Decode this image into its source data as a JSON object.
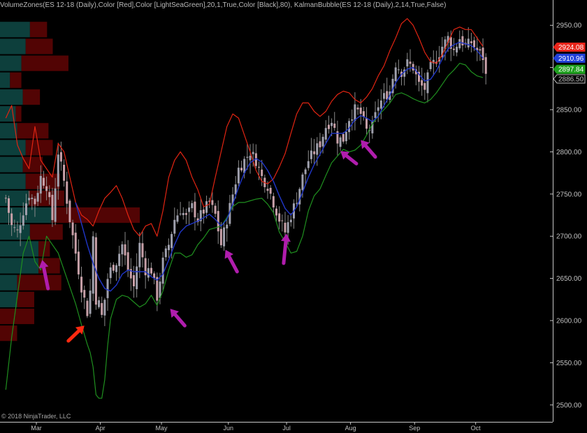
{
  "header": {
    "indicator_text": "VolumeZones(ES 12-18 (Daily),Color [Red],Color [LightSeaGreen],20,1,True,Color [Black],80), KalmanBubble(ES 12-18 (Daily),2,14,True,False)"
  },
  "footer": {
    "copyright": "© 2018 NinjaTrader, LLC"
  },
  "colors": {
    "background": "#000000",
    "bull_volume": "#0d3f3c",
    "bear_volume": "#520404",
    "upper_band": "#e02412",
    "lower_band": "#1f8f1f",
    "kalman_line": "#2036c8",
    "arrow_magenta": "#b01dad",
    "arrow_red": "#ff2a10",
    "candle_up": "#9fa0ad",
    "candle_down": "#c7a0a8",
    "axis_text": "#c0c0c0"
  },
  "chart_data": {
    "type": "candlestick",
    "instrument": "ES 12-18",
    "timeframe": "Daily",
    "yaxis": {
      "ticks": [
        2500,
        2550,
        2600,
        2650,
        2700,
        2750,
        2800,
        2850,
        2900,
        2950
      ],
      "tick_labels": [
        "2500.00",
        "2550.00",
        "2600.00",
        "2650.00",
        "2700.00",
        "2750.00",
        "2800.00",
        "2850.00",
        "2900.00",
        "2950.00"
      ],
      "ylim": [
        2480,
        2980
      ]
    },
    "xaxis": {
      "tick_labels": [
        "Mar",
        "Apr",
        "May",
        "Jun",
        "Jul",
        "Aug",
        "Sep",
        "Oct"
      ],
      "tick_positions": [
        0.5,
        22.5,
        43.5,
        66.5,
        86.5,
        108.5,
        130.5,
        151.5
      ],
      "xlim": [
        -12,
        178
      ]
    },
    "price_markers": [
      {
        "label": "2924.08",
        "value": 2924.08,
        "color": "#e8251a"
      },
      {
        "label": "2910.96",
        "value": 2910.96,
        "color": "#2040d8"
      },
      {
        "label": "2897.84",
        "value": 2897.84,
        "color": "#1ea01e"
      },
      {
        "label": "2886.50",
        "value": 2886.5,
        "color": "#000000"
      }
    ],
    "volume_zones": [
      {
        "price_lo": 2935,
        "price_hi": 2955,
        "bull": 21,
        "bear": 12
      },
      {
        "price_lo": 2915,
        "price_hi": 2935,
        "bull": 18,
        "bear": 19
      },
      {
        "price_lo": 2895,
        "price_hi": 2915,
        "bull": 15,
        "bear": 33
      },
      {
        "price_lo": 2875,
        "price_hi": 2895,
        "bull": 7,
        "bear": 8
      },
      {
        "price_lo": 2855,
        "price_hi": 2875,
        "bull": 16,
        "bear": 12
      },
      {
        "price_lo": 2835,
        "price_hi": 2855,
        "bull": 11,
        "bear": 4
      },
      {
        "price_lo": 2815,
        "price_hi": 2835,
        "bull": 12,
        "bear": 22
      },
      {
        "price_lo": 2795,
        "price_hi": 2815,
        "bull": 18,
        "bear": 19
      },
      {
        "price_lo": 2775,
        "price_hi": 2795,
        "bull": 16,
        "bear": 14
      },
      {
        "price_lo": 2755,
        "price_hi": 2775,
        "bull": 18,
        "bear": 24
      },
      {
        "price_lo": 2735,
        "price_hi": 2755,
        "bull": 20,
        "bear": 25
      },
      {
        "price_lo": 2715,
        "price_hi": 2735,
        "bull": 36,
        "bear": 62
      },
      {
        "price_lo": 2695,
        "price_hi": 2715,
        "bull": 21,
        "bear": 23
      },
      {
        "price_lo": 2675,
        "price_hi": 2695,
        "bull": 27,
        "bear": 8
      },
      {
        "price_lo": 2655,
        "price_hi": 2675,
        "bull": 27,
        "bear": 15
      },
      {
        "price_lo": 2635,
        "price_hi": 2655,
        "bull": 12,
        "bear": 31
      },
      {
        "price_lo": 2615,
        "price_hi": 2635,
        "bull": 12,
        "bear": 12
      },
      {
        "price_lo": 2595,
        "price_hi": 2615,
        "bull": 0,
        "bear": 24
      },
      {
        "price_lo": 2575,
        "price_hi": 2595,
        "bull": 0,
        "bear": 12
      }
    ],
    "close_path": [
      [
        -10,
        2745
      ],
      [
        -8,
        2712
      ],
      [
        -6,
        2705
      ],
      [
        -4,
        2730
      ],
      [
        -2,
        2750
      ],
      [
        0,
        2740
      ],
      [
        2,
        2770
      ],
      [
        4,
        2760
      ],
      [
        6,
        2720
      ],
      [
        8,
        2800
      ],
      [
        10,
        2765
      ],
      [
        12,
        2720
      ],
      [
        14,
        2680
      ],
      [
        16,
        2640
      ],
      [
        18,
        2610
      ],
      [
        19,
        2635
      ],
      [
        20,
        2700
      ],
      [
        21,
        2625
      ],
      [
        22,
        2620
      ],
      [
        23,
        2605
      ],
      [
        24,
        2625
      ],
      [
        25,
        2650
      ],
      [
        26,
        2660
      ],
      [
        28,
        2670
      ],
      [
        30,
        2690
      ],
      [
        32,
        2660
      ],
      [
        34,
        2640
      ],
      [
        36,
        2690
      ],
      [
        38,
        2660
      ],
      [
        40,
        2660
      ],
      [
        42,
        2628
      ],
      [
        44,
        2670
      ],
      [
        46,
        2690
      ],
      [
        48,
        2720
      ],
      [
        50,
        2732
      ],
      [
        52,
        2722
      ],
      [
        54,
        2735
      ],
      [
        56,
        2720
      ],
      [
        58,
        2730
      ],
      [
        60,
        2740
      ],
      [
        62,
        2725
      ],
      [
        64,
        2690
      ],
      [
        66,
        2720
      ],
      [
        68,
        2750
      ],
      [
        70,
        2780
      ],
      [
        72,
        2790
      ],
      [
        74,
        2800
      ],
      [
        76,
        2790
      ],
      [
        78,
        2770
      ],
      [
        80,
        2760
      ],
      [
        82,
        2740
      ],
      [
        84,
        2720
      ],
      [
        86,
        2705
      ],
      [
        88,
        2725
      ],
      [
        90,
        2745
      ],
      [
        92,
        2770
      ],
      [
        94,
        2790
      ],
      [
        96,
        2800
      ],
      [
        98,
        2810
      ],
      [
        100,
        2830
      ],
      [
        102,
        2838
      ],
      [
        104,
        2815
      ],
      [
        106,
        2815
      ],
      [
        108,
        2840
      ],
      [
        110,
        2850
      ],
      [
        112,
        2845
      ],
      [
        114,
        2825
      ],
      [
        116,
        2830
      ],
      [
        118,
        2855
      ],
      [
        120,
        2865
      ],
      [
        122,
        2872
      ],
      [
        124,
        2905
      ],
      [
        126,
        2895
      ],
      [
        128,
        2905
      ],
      [
        130,
        2900
      ],
      [
        132,
        2880
      ],
      [
        134,
        2875
      ],
      [
        136,
        2900
      ],
      [
        138,
        2910
      ],
      [
        140,
        2925
      ],
      [
        142,
        2935
      ],
      [
        144,
        2920
      ],
      [
        146,
        2935
      ],
      [
        148,
        2925
      ],
      [
        150,
        2930
      ],
      [
        152,
        2920
      ],
      [
        154,
        2912
      ],
      [
        155,
        2890
      ]
    ],
    "upper_band": [
      [
        -10,
        2840
      ],
      [
        -8,
        2855
      ],
      [
        -6,
        2808
      ],
      [
        -4,
        2792
      ],
      [
        -2,
        2780
      ],
      [
        0,
        2830
      ],
      [
        2,
        2790
      ],
      [
        4,
        2780
      ],
      [
        6,
        2770
      ],
      [
        8,
        2810
      ],
      [
        10,
        2800
      ],
      [
        12,
        2770
      ],
      [
        14,
        2740
      ],
      [
        16,
        2725
      ],
      [
        18,
        2720
      ],
      [
        20,
        2712
      ],
      [
        22,
        2730
      ],
      [
        24,
        2745
      ],
      [
        26,
        2752
      ],
      [
        28,
        2760
      ],
      [
        30,
        2745
      ],
      [
        32,
        2725
      ],
      [
        34,
        2708
      ],
      [
        36,
        2700
      ],
      [
        38,
        2712
      ],
      [
        40,
        2715
      ],
      [
        42,
        2700
      ],
      [
        44,
        2730
      ],
      [
        46,
        2770
      ],
      [
        48,
        2790
      ],
      [
        50,
        2800
      ],
      [
        52,
        2790
      ],
      [
        54,
        2770
      ],
      [
        56,
        2755
      ],
      [
        58,
        2735
      ],
      [
        60,
        2738
      ],
      [
        62,
        2770
      ],
      [
        64,
        2800
      ],
      [
        66,
        2830
      ],
      [
        68,
        2845
      ],
      [
        70,
        2840
      ],
      [
        72,
        2820
      ],
      [
        74,
        2800
      ],
      [
        76,
        2778
      ],
      [
        78,
        2765
      ],
      [
        80,
        2762
      ],
      [
        82,
        2768
      ],
      [
        84,
        2782
      ],
      [
        86,
        2798
      ],
      [
        88,
        2822
      ],
      [
        90,
        2845
      ],
      [
        92,
        2858
      ],
      [
        94,
        2858
      ],
      [
        96,
        2848
      ],
      [
        98,
        2842
      ],
      [
        100,
        2848
      ],
      [
        102,
        2860
      ],
      [
        104,
        2868
      ],
      [
        106,
        2872
      ],
      [
        108,
        2870
      ],
      [
        110,
        2862
      ],
      [
        112,
        2858
      ],
      [
        114,
        2865
      ],
      [
        116,
        2875
      ],
      [
        118,
        2890
      ],
      [
        120,
        2902
      ],
      [
        122,
        2920
      ],
      [
        124,
        2935
      ],
      [
        126,
        2952
      ],
      [
        128,
        2958
      ],
      [
        130,
        2950
      ],
      [
        132,
        2935
      ],
      [
        134,
        2918
      ],
      [
        136,
        2907
      ],
      [
        138,
        2905
      ],
      [
        140,
        2915
      ],
      [
        142,
        2930
      ],
      [
        144,
        2945
      ],
      [
        146,
        2948
      ],
      [
        148,
        2945
      ],
      [
        150,
        2945
      ],
      [
        152,
        2935
      ],
      [
        154,
        2925
      ]
    ],
    "lower_band": [
      [
        -10,
        2518
      ],
      [
        -8,
        2580
      ],
      [
        -6,
        2630
      ],
      [
        -4,
        2680
      ],
      [
        -2,
        2700
      ],
      [
        0,
        2670
      ],
      [
        2,
        2660
      ],
      [
        4,
        2700
      ],
      [
        6,
        2690
      ],
      [
        8,
        2680
      ],
      [
        10,
        2660
      ],
      [
        12,
        2640
      ],
      [
        14,
        2620
      ],
      [
        16,
        2595
      ],
      [
        18,
        2572
      ],
      [
        19,
        2562
      ],
      [
        20,
        2545
      ],
      [
        21,
        2512
      ],
      [
        22,
        2508
      ],
      [
        23,
        2508
      ],
      [
        24,
        2530
      ],
      [
        25,
        2570
      ],
      [
        26,
        2602
      ],
      [
        28,
        2625
      ],
      [
        30,
        2630
      ],
      [
        32,
        2628
      ],
      [
        34,
        2622
      ],
      [
        36,
        2616
      ],
      [
        38,
        2620
      ],
      [
        40,
        2630
      ],
      [
        42,
        2618
      ],
      [
        44,
        2635
      ],
      [
        46,
        2660
      ],
      [
        48,
        2680
      ],
      [
        50,
        2680
      ],
      [
        52,
        2675
      ],
      [
        54,
        2678
      ],
      [
        56,
        2690
      ],
      [
        58,
        2698
      ],
      [
        60,
        2708
      ],
      [
        62,
        2710
      ],
      [
        64,
        2712
      ],
      [
        66,
        2722
      ],
      [
        68,
        2735
      ],
      [
        70,
        2740
      ],
      [
        72,
        2740
      ],
      [
        74,
        2742
      ],
      [
        76,
        2744
      ],
      [
        78,
        2745
      ],
      [
        80,
        2738
      ],
      [
        82,
        2728
      ],
      [
        84,
        2705
      ],
      [
        86,
        2693
      ],
      [
        88,
        2680
      ],
      [
        90,
        2682
      ],
      [
        92,
        2700
      ],
      [
        94,
        2730
      ],
      [
        96,
        2748
      ],
      [
        98,
        2756
      ],
      [
        100,
        2772
      ],
      [
        102,
        2787
      ],
      [
        104,
        2795
      ],
      [
        106,
        2803
      ],
      [
        108,
        2800
      ],
      [
        110,
        2802
      ],
      [
        112,
        2808
      ],
      [
        114,
        2820
      ],
      [
        116,
        2833
      ],
      [
        118,
        2843
      ],
      [
        120,
        2850
      ],
      [
        122,
        2858
      ],
      [
        124,
        2868
      ],
      [
        126,
        2870
      ],
      [
        128,
        2867
      ],
      [
        130,
        2863
      ],
      [
        132,
        2860
      ],
      [
        134,
        2858
      ],
      [
        136,
        2862
      ],
      [
        138,
        2870
      ],
      [
        140,
        2880
      ],
      [
        142,
        2890
      ],
      [
        144,
        2897
      ],
      [
        146,
        2905
      ],
      [
        148,
        2903
      ],
      [
        150,
        2895
      ],
      [
        152,
        2890
      ],
      [
        154,
        2888
      ]
    ],
    "kalman_line": [
      [
        14,
        2740
      ],
      [
        16,
        2715
      ],
      [
        18,
        2690
      ],
      [
        20,
        2668
      ],
      [
        22,
        2650
      ],
      [
        24,
        2638
      ],
      [
        26,
        2635
      ],
      [
        28,
        2642
      ],
      [
        30,
        2655
      ],
      [
        32,
        2660
      ],
      [
        34,
        2658
      ],
      [
        36,
        2658
      ],
      [
        38,
        2658
      ],
      [
        40,
        2652
      ],
      [
        42,
        2648
      ],
      [
        44,
        2655
      ],
      [
        46,
        2672
      ],
      [
        48,
        2690
      ],
      [
        50,
        2705
      ],
      [
        52,
        2712
      ],
      [
        54,
        2715
      ],
      [
        56,
        2718
      ],
      [
        58,
        2722
      ],
      [
        60,
        2726
      ],
      [
        62,
        2720
      ],
      [
        64,
        2712
      ],
      [
        66,
        2720
      ],
      [
        68,
        2738
      ],
      [
        70,
        2758
      ],
      [
        72,
        2775
      ],
      [
        74,
        2787
      ],
      [
        76,
        2792
      ],
      [
        78,
        2788
      ],
      [
        80,
        2778
      ],
      [
        82,
        2765
      ],
      [
        84,
        2748
      ],
      [
        86,
        2733
      ],
      [
        88,
        2725
      ],
      [
        90,
        2735
      ],
      [
        92,
        2752
      ],
      [
        94,
        2770
      ],
      [
        96,
        2785
      ],
      [
        98,
        2797
      ],
      [
        100,
        2810
      ],
      [
        102,
        2822
      ],
      [
        104,
        2822
      ],
      [
        106,
        2822
      ],
      [
        108,
        2828
      ],
      [
        110,
        2838
      ],
      [
        112,
        2843
      ],
      [
        114,
        2840
      ],
      [
        116,
        2836
      ],
      [
        118,
        2842
      ],
      [
        120,
        2855
      ],
      [
        122,
        2867
      ],
      [
        124,
        2882
      ],
      [
        126,
        2892
      ],
      [
        128,
        2898
      ],
      [
        130,
        2900
      ],
      [
        132,
        2892
      ],
      [
        134,
        2884
      ],
      [
        136,
        2886
      ],
      [
        138,
        2896
      ],
      [
        140,
        2910
      ],
      [
        142,
        2922
      ],
      [
        144,
        2927
      ],
      [
        146,
        2930
      ],
      [
        148,
        2928
      ],
      [
        150,
        2926
      ],
      [
        152,
        2920
      ],
      [
        154,
        2911
      ]
    ],
    "annotations": [
      {
        "type": "arrow",
        "color": "magenta",
        "tip": [
          2.5,
          2672
        ],
        "tail": [
          4.5,
          2638
        ]
      },
      {
        "type": "arrow",
        "color": "red",
        "tip": [
          17,
          2594
        ],
        "tail": [
          11.5,
          2576
        ]
      },
      {
        "type": "arrow",
        "color": "magenta",
        "tip": [
          46.5,
          2614
        ],
        "tail": [
          51.5,
          2594
        ]
      },
      {
        "type": "arrow",
        "color": "magenta",
        "tip": [
          65.5,
          2684
        ],
        "tail": [
          69.5,
          2658
        ]
      },
      {
        "type": "arrow",
        "color": "magenta",
        "tip": [
          86.5,
          2703
        ],
        "tail": [
          85.5,
          2668
        ]
      },
      {
        "type": "arrow",
        "color": "magenta",
        "tip": [
          105,
          2801
        ],
        "tail": [
          110.5,
          2786
        ]
      },
      {
        "type": "arrow",
        "color": "magenta",
        "tip": [
          112,
          2814
        ],
        "tail": [
          117,
          2794
        ]
      }
    ]
  }
}
